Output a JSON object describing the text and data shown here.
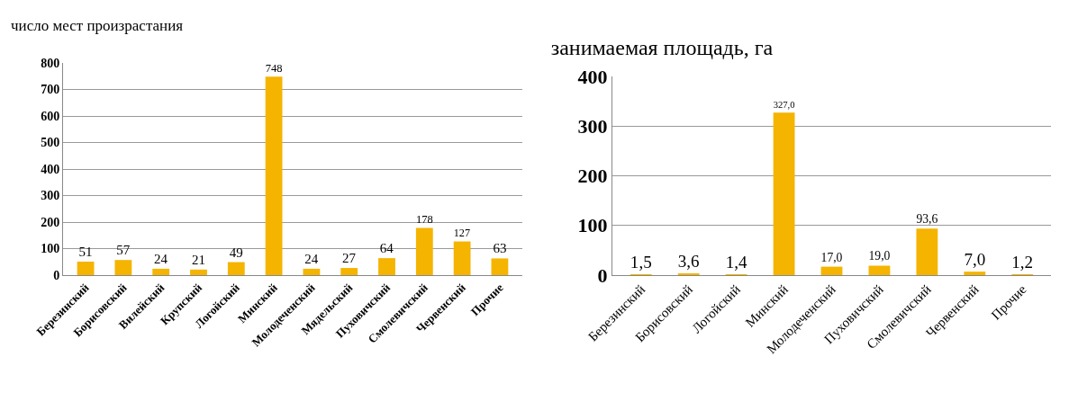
{
  "chart_data": [
    {
      "type": "bar",
      "title": "число мест произрастания",
      "categories": [
        "Березинский",
        "Борисовский",
        "Вилейский",
        "Крупский",
        "Логойский",
        "Минский",
        "Молодеченский",
        "Мядельский",
        "Пуховичский",
        "Смолевичский",
        "Червенский",
        "Прочие"
      ],
      "values": [
        51,
        57,
        24,
        21,
        49,
        748,
        24,
        27,
        64,
        178,
        127,
        63
      ],
      "color": "#f5b400",
      "ylim": [
        0,
        800
      ],
      "yticks": [
        0,
        100,
        200,
        300,
        400,
        500,
        600,
        700,
        800
      ],
      "grid": "y",
      "data_labels": true
    },
    {
      "type": "bar",
      "title": "занимаемая площадь, га",
      "categories": [
        "Березинский",
        "Борисовский",
        "Логойский",
        "Минский",
        "Молодеченский",
        "Пуховичский",
        "Смолевичский",
        "Червенский",
        "Прочие"
      ],
      "values": [
        1.5,
        3.6,
        1.4,
        327.0,
        17.0,
        19.0,
        93.6,
        7.0,
        1.2
      ],
      "value_labels": [
        "1,5",
        "3,6",
        "1,4",
        "327,0",
        "17,0",
        "19,0",
        "93,6",
        "7,0",
        "1,2"
      ],
      "color": "#f5b400",
      "ylim": [
        0,
        400
      ],
      "yticks": [
        0,
        100,
        200,
        300,
        400
      ],
      "grid": "y"
    }
  ]
}
